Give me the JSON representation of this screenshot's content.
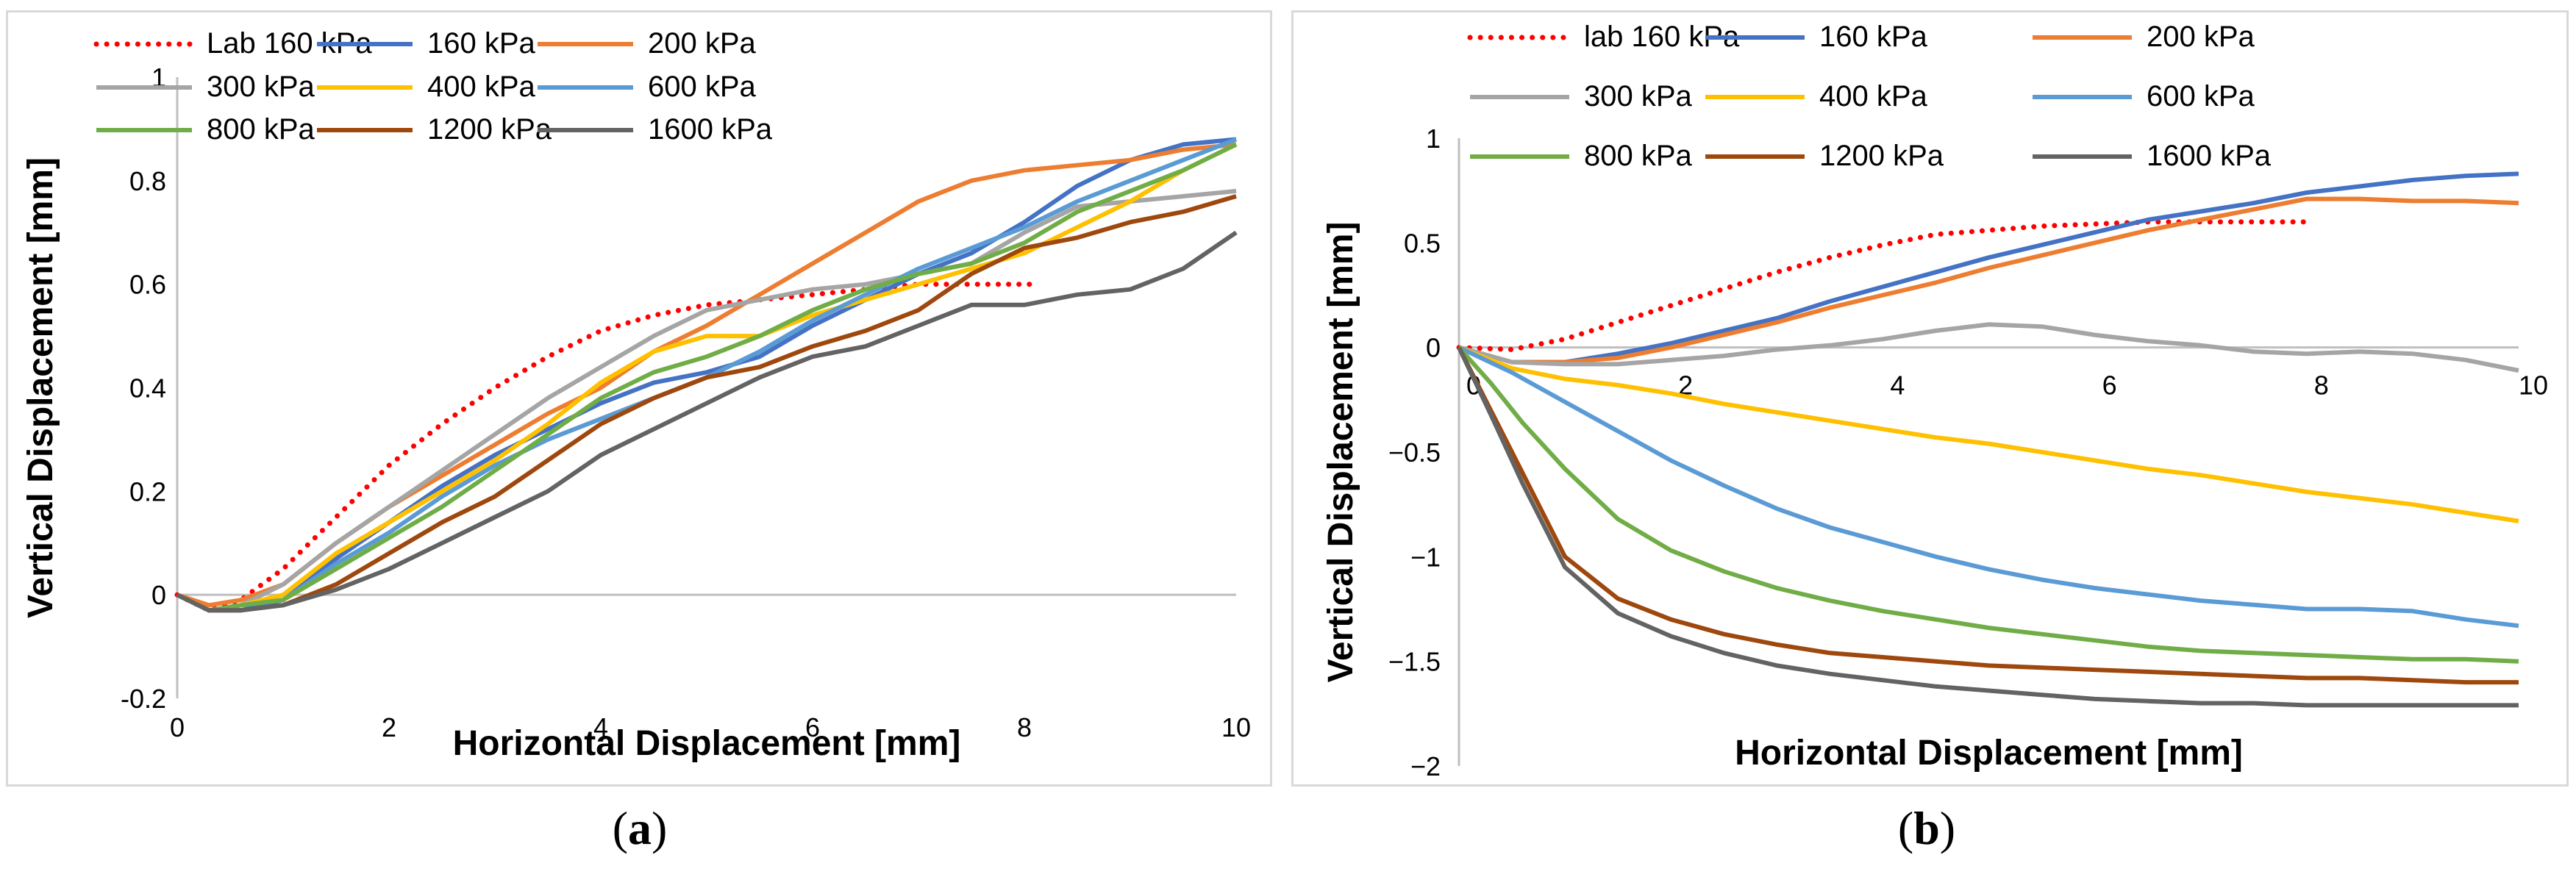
{
  "colors": {
    "lab": "#ff0000",
    "s160": "#4472c4",
    "s200": "#ed7d31",
    "s300": "#a5a5a5",
    "s400": "#ffc000",
    "s600": "#5b9bd5",
    "s800": "#70ad47",
    "s1200": "#9e480e",
    "s1600": "#636363"
  },
  "captions": {
    "a": "a",
    "b": "b"
  },
  "chart_data": [
    {
      "type": "line",
      "id": "a",
      "title": "",
      "xlabel": "Horizontal Displacement [mm]",
      "ylabel": "Vertical Displacement [mm]",
      "xlim": [
        0,
        10
      ],
      "ylim": [
        -0.2,
        1
      ],
      "xticks": [
        0,
        2,
        4,
        6,
        8,
        10
      ],
      "yticks": [
        -0.2,
        0,
        0.2,
        0.4,
        0.6,
        0.8,
        1
      ],
      "ytick_labels": [
        "-0.2",
        "0",
        "0.2",
        "0.4",
        "0.6",
        "0.8",
        "1"
      ],
      "legend": "top",
      "series": [
        {
          "name": "Lab 160 kPa",
          "color_key": "lab",
          "dashed": true,
          "x": [
            0,
            0.3,
            0.6,
            1,
            1.5,
            2,
            2.5,
            3,
            3.5,
            4,
            4.5,
            5,
            5.5,
            6,
            6.5,
            7,
            7.5,
            8,
            8.1
          ],
          "y": [
            0,
            -0.03,
            -0.01,
            0.05,
            0.15,
            0.25,
            0.33,
            0.4,
            0.46,
            0.51,
            0.54,
            0.56,
            0.57,
            0.58,
            0.59,
            0.6,
            0.6,
            0.6,
            0.6
          ]
        },
        {
          "name": "160 kPa",
          "color_key": "s160",
          "dashed": false,
          "x": [
            0,
            0.3,
            0.6,
            1,
            1.5,
            2,
            2.5,
            3,
            3.5,
            4,
            4.5,
            5,
            5.5,
            6,
            6.5,
            7,
            7.5,
            8,
            8.5,
            9,
            9.5,
            10
          ],
          "y": [
            0,
            -0.03,
            -0.03,
            -0.01,
            0.07,
            0.14,
            0.21,
            0.27,
            0.32,
            0.37,
            0.41,
            0.43,
            0.46,
            0.52,
            0.57,
            0.62,
            0.66,
            0.72,
            0.79,
            0.84,
            0.87,
            0.88
          ]
        },
        {
          "name": "200 kPa",
          "color_key": "s200",
          "dashed": false,
          "x": [
            0,
            0.3,
            0.6,
            1,
            1.5,
            2,
            2.5,
            3,
            3.5,
            4,
            4.5,
            5,
            5.5,
            6,
            6.5,
            7,
            7.5,
            8,
            8.5,
            9,
            9.5,
            10
          ],
          "y": [
            0,
            -0.02,
            -0.01,
            0.02,
            0.1,
            0.17,
            0.23,
            0.29,
            0.35,
            0.4,
            0.47,
            0.52,
            0.58,
            0.64,
            0.7,
            0.76,
            0.8,
            0.82,
            0.83,
            0.84,
            0.86,
            0.87
          ]
        },
        {
          "name": "300 kPa",
          "color_key": "s300",
          "dashed": false,
          "x": [
            0,
            0.3,
            0.6,
            1,
            1.5,
            2,
            2.5,
            3,
            3.5,
            4,
            4.5,
            5,
            5.5,
            6,
            6.5,
            7,
            7.5,
            8,
            8.5,
            9,
            9.5,
            10
          ],
          "y": [
            0,
            -0.03,
            -0.02,
            0.02,
            0.1,
            0.17,
            0.24,
            0.31,
            0.38,
            0.44,
            0.5,
            0.55,
            0.57,
            0.59,
            0.6,
            0.62,
            0.64,
            0.7,
            0.75,
            0.76,
            0.77,
            0.78
          ]
        },
        {
          "name": "400 kPa",
          "color_key": "s400",
          "dashed": false,
          "x": [
            0,
            0.3,
            0.6,
            1,
            1.5,
            2,
            2.5,
            3,
            3.5,
            4,
            4.5,
            5,
            5.5,
            6,
            6.5,
            7,
            7.5,
            8,
            8.5,
            9,
            9.5,
            10
          ],
          "y": [
            0,
            -0.03,
            -0.02,
            0.0,
            0.08,
            0.14,
            0.2,
            0.26,
            0.33,
            0.41,
            0.47,
            0.5,
            0.5,
            0.54,
            0.57,
            0.6,
            0.63,
            0.66,
            0.71,
            0.76,
            0.82,
            0.87
          ]
        },
        {
          "name": "600 kPa",
          "color_key": "s600",
          "dashed": false,
          "x": [
            0,
            0.3,
            0.6,
            1,
            1.5,
            2,
            2.5,
            3,
            3.5,
            4,
            4.5,
            5,
            5.5,
            6,
            6.5,
            7,
            7.5,
            8,
            8.5,
            9,
            9.5,
            10
          ],
          "y": [
            0,
            -0.03,
            -0.02,
            -0.01,
            0.06,
            0.12,
            0.19,
            0.25,
            0.3,
            0.34,
            0.38,
            0.42,
            0.47,
            0.53,
            0.58,
            0.63,
            0.67,
            0.71,
            0.76,
            0.8,
            0.84,
            0.88
          ]
        },
        {
          "name": "800 kPa",
          "color_key": "s800",
          "dashed": false,
          "x": [
            0,
            0.3,
            0.6,
            1,
            1.5,
            2,
            2.5,
            3,
            3.5,
            4,
            4.5,
            5,
            5.5,
            6,
            6.5,
            7,
            7.5,
            8,
            8.5,
            9,
            9.5,
            10
          ],
          "y": [
            0,
            -0.03,
            -0.02,
            -0.01,
            0.05,
            0.11,
            0.17,
            0.24,
            0.31,
            0.38,
            0.43,
            0.46,
            0.5,
            0.55,
            0.59,
            0.62,
            0.64,
            0.68,
            0.74,
            0.78,
            0.82,
            0.87
          ]
        },
        {
          "name": "1200 kPa",
          "color_key": "s1200",
          "dashed": false,
          "x": [
            0,
            0.3,
            0.6,
            1,
            1.5,
            2,
            2.5,
            3,
            3.5,
            4,
            4.5,
            5,
            5.5,
            6,
            6.5,
            7,
            7.5,
            8,
            8.5,
            9,
            9.5,
            10
          ],
          "y": [
            0,
            -0.03,
            -0.03,
            -0.02,
            0.02,
            0.08,
            0.14,
            0.19,
            0.26,
            0.33,
            0.38,
            0.42,
            0.44,
            0.48,
            0.51,
            0.55,
            0.62,
            0.67,
            0.69,
            0.72,
            0.74,
            0.77
          ]
        },
        {
          "name": "1600 kPa",
          "color_key": "s1600",
          "dashed": false,
          "x": [
            0,
            0.3,
            0.6,
            1,
            1.5,
            2,
            2.5,
            3,
            3.5,
            4,
            4.5,
            5,
            5.5,
            6,
            6.5,
            7,
            7.5,
            8,
            8.5,
            9,
            9.5,
            10
          ],
          "y": [
            0,
            -0.03,
            -0.03,
            -0.02,
            0.01,
            0.05,
            0.1,
            0.15,
            0.2,
            0.27,
            0.32,
            0.37,
            0.42,
            0.46,
            0.48,
            0.52,
            0.56,
            0.56,
            0.58,
            0.59,
            0.63,
            0.7
          ]
        }
      ]
    },
    {
      "type": "line",
      "id": "b",
      "title": "",
      "xlabel": "Horizontal Displacement [mm]",
      "ylabel": "Vertical Displacement [mm]",
      "xlim": [
        0,
        10
      ],
      "ylim": [
        -2,
        1
      ],
      "xticks": [
        0,
        2,
        4,
        6,
        8,
        10
      ],
      "yticks": [
        -2,
        -1.5,
        -1,
        -0.5,
        0,
        0.5,
        1
      ],
      "ytick_labels": [
        "−2",
        "−1.5",
        "−1",
        "−0.5",
        "0",
        "0.5",
        "1"
      ],
      "legend": "top",
      "series": [
        {
          "name": "lab 160 kPa",
          "color_key": "lab",
          "dashed": true,
          "x": [
            0,
            0.5,
            1,
            1.5,
            2,
            2.5,
            3,
            3.5,
            4,
            4.5,
            5,
            5.5,
            6,
            6.5,
            7,
            7.5,
            8
          ],
          "y": [
            0,
            -0.01,
            0.04,
            0.12,
            0.2,
            0.28,
            0.36,
            0.43,
            0.49,
            0.54,
            0.56,
            0.58,
            0.59,
            0.6,
            0.6,
            0.6,
            0.6
          ]
        },
        {
          "name": "160 kPa",
          "color_key": "s160",
          "dashed": false,
          "x": [
            0,
            0.5,
            1,
            1.5,
            2,
            2.5,
            3,
            3.5,
            4,
            4.5,
            5,
            5.5,
            6,
            6.5,
            7,
            7.5,
            8,
            8.5,
            9,
            9.5,
            10
          ],
          "y": [
            0,
            -0.07,
            -0.07,
            -0.03,
            0.02,
            0.08,
            0.14,
            0.22,
            0.29,
            0.36,
            0.43,
            0.49,
            0.55,
            0.61,
            0.65,
            0.69,
            0.74,
            0.77,
            0.8,
            0.82,
            0.83
          ]
        },
        {
          "name": "200 kPa",
          "color_key": "s200",
          "dashed": false,
          "x": [
            0,
            0.5,
            1,
            1.5,
            2,
            2.5,
            3,
            3.5,
            4,
            4.5,
            5,
            5.5,
            6,
            6.5,
            7,
            7.5,
            8,
            8.5,
            9,
            9.5,
            10
          ],
          "y": [
            0,
            -0.07,
            -0.07,
            -0.05,
            0.0,
            0.06,
            0.12,
            0.19,
            0.25,
            0.31,
            0.38,
            0.44,
            0.5,
            0.56,
            0.61,
            0.66,
            0.71,
            0.71,
            0.7,
            0.7,
            0.69
          ]
        },
        {
          "name": "300 kPa",
          "color_key": "s300",
          "dashed": false,
          "x": [
            0,
            0.5,
            1,
            1.5,
            2,
            2.5,
            3,
            3.5,
            4,
            4.5,
            5,
            5.5,
            6,
            6.5,
            7,
            7.5,
            8,
            8.5,
            9,
            9.5,
            10
          ],
          "y": [
            0,
            -0.07,
            -0.08,
            -0.08,
            -0.06,
            -0.04,
            -0.01,
            0.01,
            0.04,
            0.08,
            0.11,
            0.1,
            0.06,
            0.03,
            0.01,
            -0.02,
            -0.03,
            -0.02,
            -0.03,
            -0.06,
            -0.11
          ]
        },
        {
          "name": "400 kPa",
          "color_key": "s400",
          "dashed": false,
          "x": [
            0,
            0.5,
            1,
            1.5,
            2,
            2.5,
            3,
            3.5,
            4,
            4.5,
            5,
            5.5,
            6,
            6.5,
            7,
            7.5,
            8,
            8.5,
            9,
            9.5,
            10
          ],
          "y": [
            0,
            -0.1,
            -0.15,
            -0.18,
            -0.22,
            -0.27,
            -0.31,
            -0.35,
            -0.39,
            -0.43,
            -0.46,
            -0.5,
            -0.54,
            -0.58,
            -0.61,
            -0.65,
            -0.69,
            -0.72,
            -0.75,
            -0.79,
            -0.83
          ]
        },
        {
          "name": "600 kPa",
          "color_key": "s600",
          "dashed": false,
          "x": [
            0,
            0.5,
            1,
            1.5,
            2,
            2.5,
            3,
            3.5,
            4,
            4.5,
            5,
            5.5,
            6,
            6.5,
            7,
            7.5,
            8,
            8.5,
            9,
            9.5,
            10
          ],
          "y": [
            0,
            -0.12,
            -0.26,
            -0.4,
            -0.54,
            -0.66,
            -0.77,
            -0.86,
            -0.93,
            -1.0,
            -1.06,
            -1.11,
            -1.15,
            -1.18,
            -1.21,
            -1.23,
            -1.25,
            -1.25,
            -1.26,
            -1.3,
            -1.33
          ]
        },
        {
          "name": "800 kPa",
          "color_key": "s800",
          "dashed": false,
          "x": [
            0,
            0.3,
            0.6,
            1,
            1.5,
            2,
            2.5,
            3,
            3.5,
            4,
            4.5,
            5,
            5.5,
            6,
            6.5,
            7,
            7.5,
            8,
            8.5,
            9,
            9.5,
            10
          ],
          "y": [
            0,
            -0.17,
            -0.36,
            -0.58,
            -0.82,
            -0.97,
            -1.07,
            -1.15,
            -1.21,
            -1.26,
            -1.3,
            -1.34,
            -1.37,
            -1.4,
            -1.43,
            -1.45,
            -1.46,
            -1.47,
            -1.48,
            -1.49,
            -1.49,
            -1.5
          ]
        },
        {
          "name": "1200 kPa",
          "color_key": "s1200",
          "dashed": false,
          "x": [
            0,
            0.3,
            0.6,
            1,
            1.5,
            2,
            2.5,
            3,
            3.5,
            4,
            4.5,
            5,
            5.5,
            6,
            6.5,
            7,
            7.5,
            8,
            8.5,
            9,
            9.5,
            10
          ],
          "y": [
            0,
            -0.3,
            -0.6,
            -1.0,
            -1.2,
            -1.3,
            -1.37,
            -1.42,
            -1.46,
            -1.48,
            -1.5,
            -1.52,
            -1.53,
            -1.54,
            -1.55,
            -1.56,
            -1.57,
            -1.58,
            -1.58,
            -1.59,
            -1.6,
            -1.6
          ]
        },
        {
          "name": "1600 kPa",
          "color_key": "s1600",
          "dashed": false,
          "x": [
            0,
            0.3,
            0.6,
            1,
            1.5,
            2,
            2.5,
            3,
            3.5,
            4,
            4.5,
            5,
            5.5,
            6,
            6.5,
            7,
            7.5,
            8,
            8.5,
            9,
            9.5,
            10
          ],
          "y": [
            0,
            -0.32,
            -0.65,
            -1.05,
            -1.27,
            -1.38,
            -1.46,
            -1.52,
            -1.56,
            -1.59,
            -1.62,
            -1.64,
            -1.66,
            -1.68,
            -1.69,
            -1.7,
            -1.7,
            -1.71,
            -1.71,
            -1.71,
            -1.71,
            -1.71
          ]
        }
      ]
    }
  ]
}
